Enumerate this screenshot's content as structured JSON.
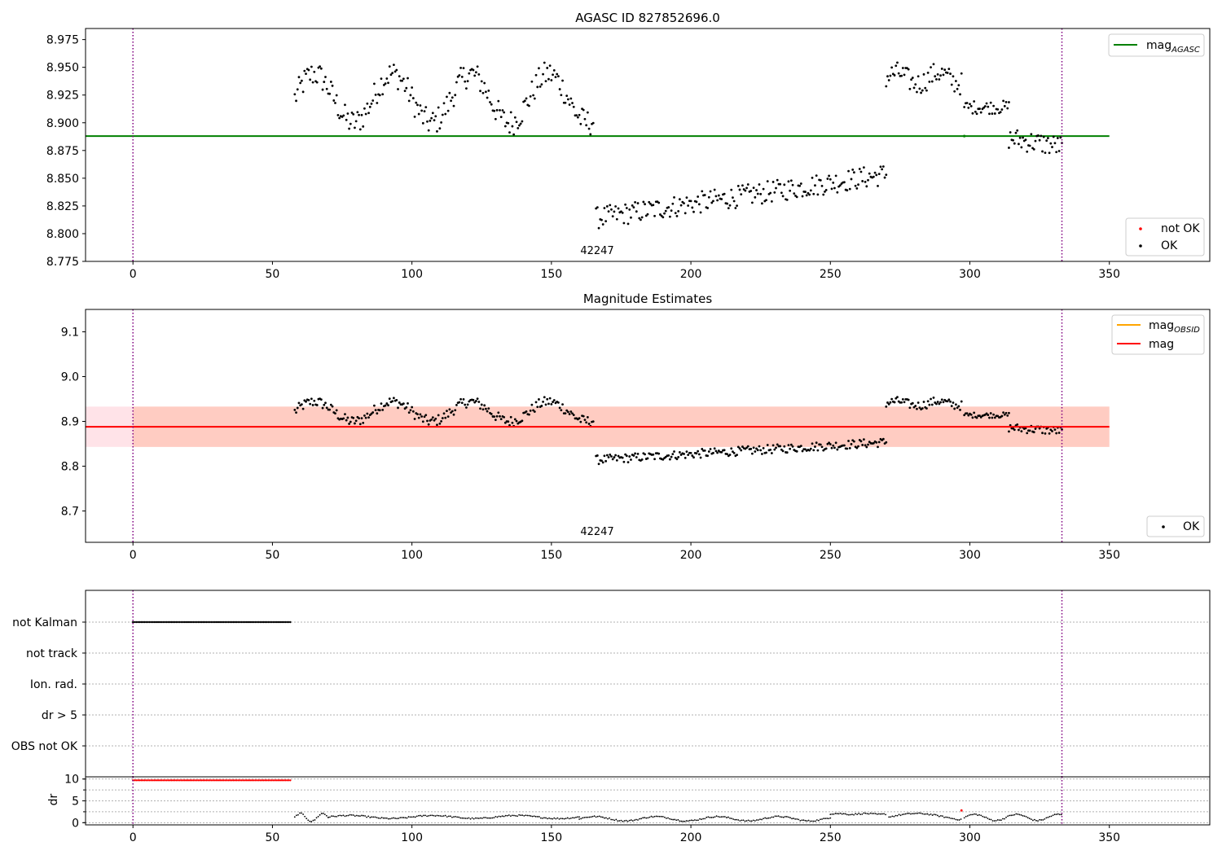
{
  "colors": {
    "ok": "#000000",
    "not_ok": "#ff0000",
    "mag_agasc": "#008000",
    "mag_obsid": "#ffa500",
    "mag": "#ff0000",
    "band_outer": "#ffc0cb",
    "band_inner": "#ffa07a",
    "vline": "#800080"
  },
  "chart_data": [
    {
      "type": "scatter",
      "title": "AGASC ID 827852696.0",
      "xlim": [
        -17,
        386
      ],
      "ylim": [
        8.775,
        8.985
      ],
      "xticks": [
        0,
        50,
        100,
        150,
        200,
        250,
        300,
        350
      ],
      "yticks": [
        8.775,
        8.8,
        8.825,
        8.85,
        8.875,
        8.9,
        8.925,
        8.95,
        8.975
      ],
      "ytick_labels": [
        "8.775",
        "8.800",
        "8.825",
        "8.850",
        "8.875",
        "8.900",
        "8.925",
        "8.950",
        "8.975"
      ],
      "obsid_label": {
        "text": "42247",
        "x": 167,
        "y": 8.779
      },
      "vlines": [
        0,
        333
      ],
      "hline": {
        "name": "mag_AGASC",
        "y": 8.888,
        "x0": -17,
        "x1": 350
      },
      "legend_lines": [
        {
          "label_main": "mag",
          "label_sub": "AGASC",
          "color": "#008000"
        }
      ],
      "legend_points": [
        {
          "label": "not OK",
          "color": "#ff0000"
        },
        {
          "label": "OK",
          "color": "#000000"
        }
      ],
      "segments": [
        {
          "x0": 58,
          "x1": 165,
          "center": 8.922,
          "amp": 0.022,
          "period": 28,
          "noise": 0.012
        },
        {
          "x0": 166,
          "x1": 270,
          "center": 8.814,
          "amp": 0.0,
          "period": 40,
          "noise": 0.01,
          "slope": 0.00038
        },
        {
          "x0": 270,
          "x1": 297,
          "center": 8.94,
          "amp": 0.005,
          "period": 15,
          "noise": 0.01
        },
        {
          "x0": 298,
          "x1": 314,
          "center": 8.914,
          "amp": 0.0,
          "period": 10,
          "noise": 0.006
        },
        {
          "x0": 314,
          "x1": 333,
          "center": 8.886,
          "amp": 0.0,
          "period": 10,
          "noise": 0.01,
          "slope": -0.0004
        }
      ],
      "highlight": [
        {
          "x": 298,
          "y": 8.888,
          "color": "#008000"
        }
      ]
    },
    {
      "type": "scatter",
      "title": "Magnitude Estimates",
      "xlim": [
        -17,
        386
      ],
      "ylim": [
        8.63,
        9.15
      ],
      "xticks": [
        0,
        50,
        100,
        150,
        200,
        250,
        300,
        350
      ],
      "yticks": [
        8.7,
        8.8,
        8.9,
        9.0,
        9.1
      ],
      "ytick_labels": [
        "8.7",
        "8.8",
        "8.9",
        "9.0",
        "9.1"
      ],
      "obsid_label": {
        "text": "42247",
        "x": 167,
        "y": 8.64
      },
      "vlines": [
        0,
        333
      ],
      "band": {
        "y0": 8.843,
        "y1": 8.933,
        "x0": -17,
        "x1": 350
      },
      "hline": {
        "name": "mag",
        "y": 8.888,
        "x0": -17,
        "x1": 350
      },
      "legend_lines": [
        {
          "label_main": "mag",
          "label_sub": "OBSID",
          "color": "#ffa500"
        },
        {
          "label_main": "mag",
          "label_sub": "",
          "color": "#ff0000"
        }
      ],
      "legend_points": [
        {
          "label": "OK",
          "color": "#000000"
        }
      ]
    },
    {
      "type": "scatter",
      "title": "",
      "xlim": [
        -17,
        386
      ],
      "ylim": [
        0,
        6
      ],
      "xticks": [],
      "ytick_labels": [
        "not Kalman",
        "not track",
        "Ion. rad.",
        "dr > 5",
        "OBS not OK"
      ],
      "flag_rows": [
        {
          "label": "not Kalman",
          "x0": 0,
          "x1": 57,
          "step": 0.6
        },
        {
          "label": "not track",
          "x0": 0,
          "x1": 0,
          "step": 1
        },
        {
          "label": "Ion. rad.",
          "x0": 0,
          "x1": 0,
          "step": 1
        },
        {
          "label": "dr > 5",
          "x0": 0,
          "x1": 0,
          "step": 1
        },
        {
          "label": "OBS not OK",
          "x0": 0,
          "x1": 0,
          "step": 1
        }
      ],
      "vlines": [
        0,
        333
      ]
    },
    {
      "type": "scatter",
      "title": "",
      "ylabel": "dr",
      "xlim": [
        -17,
        386
      ],
      "ylim": [
        -0.5,
        10.5
      ],
      "xticks": [
        0,
        50,
        100,
        150,
        200,
        250,
        300,
        350
      ],
      "yticks": [
        0,
        5,
        10
      ],
      "ytick_labels": [
        "0",
        "5",
        "10"
      ],
      "vlines": [
        0,
        333
      ],
      "red_run": {
        "x0": 0,
        "x1": 57,
        "y": 9.7
      },
      "dr_segments": [
        {
          "x0": 58,
          "x1": 70,
          "base": 1.2,
          "amp": 0.9,
          "period": 8
        },
        {
          "x0": 70,
          "x1": 160,
          "base": 1.3,
          "amp": 0.35,
          "period": 30
        },
        {
          "x0": 160,
          "x1": 250,
          "base": 0.9,
          "amp": 0.5,
          "period": 22
        },
        {
          "x0": 250,
          "x1": 270,
          "base": 2.0,
          "amp": 0.1,
          "period": 10
        },
        {
          "x0": 271,
          "x1": 297,
          "base": 1.3,
          "amp": 0.8,
          "period": 40
        },
        {
          "x0": 298,
          "x1": 333,
          "base": 1.2,
          "amp": 0.7,
          "period": 15
        }
      ],
      "red_points": [
        {
          "x": 297,
          "y": 2.8
        }
      ]
    }
  ]
}
